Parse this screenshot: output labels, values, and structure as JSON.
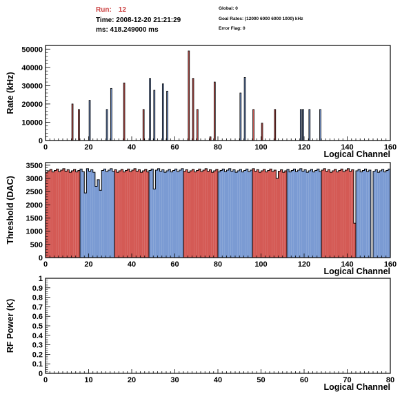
{
  "header": {
    "run_label": "Run:",
    "run_value": "12",
    "time": "Time: 2008-12-20 21:21:29",
    "ms": "ms: 418.249000 ms",
    "global": "Global: 0",
    "goal_rates": "Goal Rates: (12000 6000 6000 1000) kHz",
    "error_flag": "Error Flag: 0"
  },
  "colors": {
    "red": "#d45a55",
    "blue": "#7b9bd3"
  },
  "chart_data": [
    {
      "type": "bar",
      "ylabel": "Rate (kHz)",
      "xlabel": "Logical Channel",
      "xlim": [
        0,
        160
      ],
      "ylim": [
        0,
        52000
      ],
      "xticks": [
        0,
        20,
        40,
        60,
        80,
        100,
        120,
        140,
        160
      ],
      "yticks": [
        0,
        10000,
        20000,
        30000,
        40000,
        50000
      ],
      "bars": [
        {
          "x": 12,
          "y": 20000,
          "c": "red"
        },
        {
          "x": 15,
          "y": 17000,
          "c": "red"
        },
        {
          "x": 20,
          "y": 22000,
          "c": "blue"
        },
        {
          "x": 28,
          "y": 17000,
          "c": "blue"
        },
        {
          "x": 30,
          "y": 28500,
          "c": "blue"
        },
        {
          "x": 36,
          "y": 31500,
          "c": "red"
        },
        {
          "x": 45,
          "y": 17000,
          "c": "red"
        },
        {
          "x": 48,
          "y": 34000,
          "c": "blue"
        },
        {
          "x": 50,
          "y": 27500,
          "c": "blue"
        },
        {
          "x": 54,
          "y": 31000,
          "c": "blue"
        },
        {
          "x": 56,
          "y": 27000,
          "c": "blue"
        },
        {
          "x": 66,
          "y": 49000,
          "c": "red"
        },
        {
          "x": 68,
          "y": 34000,
          "c": "red"
        },
        {
          "x": 70,
          "y": 17000,
          "c": "red"
        },
        {
          "x": 76,
          "y": 2000,
          "c": "red"
        },
        {
          "x": 78,
          "y": 32000,
          "c": "red"
        },
        {
          "x": 90,
          "y": 26000,
          "c": "blue"
        },
        {
          "x": 92,
          "y": 34500,
          "c": "blue"
        },
        {
          "x": 96,
          "y": 17000,
          "c": "red"
        },
        {
          "x": 100,
          "y": 9500,
          "c": "red"
        },
        {
          "x": 106,
          "y": 17000,
          "c": "red"
        },
        {
          "x": 118,
          "y": 17000,
          "c": "blue"
        },
        {
          "x": 119,
          "y": 17000,
          "c": "blue"
        },
        {
          "x": 122,
          "y": 17000,
          "c": "blue"
        },
        {
          "x": 127,
          "y": 17000,
          "c": "blue"
        }
      ]
    },
    {
      "type": "bar",
      "ylabel": "Threshold (DAC)",
      "xlabel": "Logical Channel",
      "xlim": [
        0,
        160
      ],
      "ylim": [
        0,
        3600
      ],
      "xticks": [
        0,
        20,
        40,
        60,
        80,
        100,
        120,
        140,
        160
      ],
      "yticks": [
        0,
        500,
        1000,
        1500,
        2000,
        2500,
        3000,
        3500
      ],
      "groups": [
        {
          "from": 0,
          "to": 16,
          "c": "red"
        },
        {
          "from": 16,
          "to": 32,
          "c": "blue"
        },
        {
          "from": 32,
          "to": 48,
          "c": "red"
        },
        {
          "from": 48,
          "to": 64,
          "c": "blue"
        },
        {
          "from": 64,
          "to": 80,
          "c": "red"
        },
        {
          "from": 80,
          "to": 96,
          "c": "blue"
        },
        {
          "from": 96,
          "to": 112,
          "c": "red"
        },
        {
          "from": 112,
          "to": 128,
          "c": "blue"
        },
        {
          "from": 128,
          "to": 144,
          "c": "red"
        },
        {
          "from": 144,
          "to": 151,
          "c": "blue"
        },
        {
          "from": 152,
          "to": 160,
          "c": "blue"
        }
      ],
      "baseline": 3300,
      "dips": [
        {
          "x": 18,
          "y": 2450
        },
        {
          "x": 23,
          "y": 2700
        },
        {
          "x": 24,
          "y": 2950
        },
        {
          "x": 25,
          "y": 2550
        },
        {
          "x": 50,
          "y": 2600
        },
        {
          "x": 107,
          "y": 3000
        },
        {
          "x": 143,
          "y": 1300
        },
        {
          "x": 151,
          "y": 0
        }
      ]
    },
    {
      "type": "bar",
      "ylabel": "RF Power (K)",
      "xlabel": "Logical Channel",
      "xlim": [
        0,
        80
      ],
      "ylim": [
        0,
        1
      ],
      "xticks": [
        0,
        10,
        20,
        30,
        40,
        50,
        60,
        70,
        80
      ],
      "yticks": [
        0,
        0.1,
        0.2,
        0.3,
        0.4,
        0.5,
        0.6,
        0.7,
        0.8,
        0.9,
        1
      ],
      "values": []
    }
  ]
}
